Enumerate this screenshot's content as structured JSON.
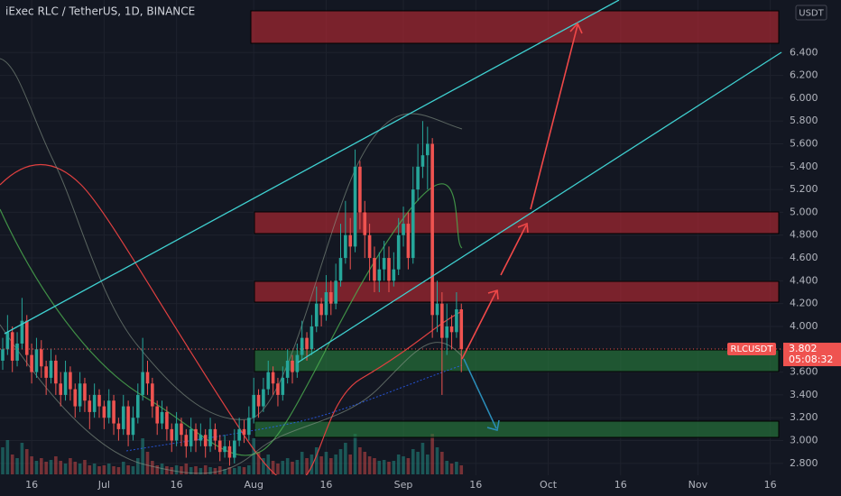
{
  "chart_data": {
    "type": "candlestick",
    "title": "iExec RLC / TetherUS, 1D, BINANCE",
    "currency": "USDT",
    "up_color": "#26a69a",
    "down_color": "#ef5350",
    "grid": true,
    "price_label": {
      "symbol": "RLCUSDT",
      "price": "3.802",
      "countdown": "05:08:32"
    },
    "ylim": [
      2.7,
      6.73
    ],
    "yticks": [
      {
        "value": 2.8,
        "label": "2.800"
      },
      {
        "value": 3.0,
        "label": "3.000"
      },
      {
        "value": 3.2,
        "label": "3.200"
      },
      {
        "value": 3.4,
        "label": "3.400"
      },
      {
        "value": 3.6,
        "label": "3.600"
      },
      {
        "value": 3.8,
        "label": "3.800"
      },
      {
        "value": 4.0,
        "label": "4.000"
      },
      {
        "value": 4.2,
        "label": "4.200"
      },
      {
        "value": 4.4,
        "label": "4.400"
      },
      {
        "value": 4.6,
        "label": "4.600"
      },
      {
        "value": 4.8,
        "label": "4.800"
      },
      {
        "value": 5.0,
        "label": "5.000"
      },
      {
        "value": 5.2,
        "label": "5.200"
      },
      {
        "value": 5.4,
        "label": "5.400"
      },
      {
        "value": 5.6,
        "label": "5.600"
      },
      {
        "value": 5.8,
        "label": "5.800"
      },
      {
        "value": 6.0,
        "label": "6.000"
      },
      {
        "value": 6.2,
        "label": "6.200"
      },
      {
        "value": 6.4,
        "label": "6.400"
      }
    ],
    "xticks": [
      {
        "value": "Jun 16",
        "label": "16"
      },
      {
        "value": "Jul 1",
        "label": "Jul"
      },
      {
        "value": "Jul 16",
        "label": "16"
      },
      {
        "value": "Aug 1",
        "label": "Aug"
      },
      {
        "value": "Aug 16",
        "label": "16"
      },
      {
        "value": "Sep 1",
        "label": "Sep"
      },
      {
        "value": "Sep 16",
        "label": "16"
      },
      {
        "value": "Oct 1",
        "label": "Oct"
      },
      {
        "value": "Oct 16",
        "label": "16"
      },
      {
        "value": "Nov 1",
        "label": "Nov"
      },
      {
        "value": "Nov 16",
        "label": "16"
      }
    ],
    "x": [
      "Jun 10",
      "Jun 11",
      "Jun 12",
      "Jun 13",
      "Jun 14",
      "Jun 15",
      "Jun 16",
      "Jun 17",
      "Jun 18",
      "Jun 19",
      "Jun 20",
      "Jun 21",
      "Jun 22",
      "Jun 23",
      "Jun 24",
      "Jun 25",
      "Jun 26",
      "Jun 27",
      "Jun 28",
      "Jun 29",
      "Jun 30",
      "Jul 1",
      "Jul 2",
      "Jul 3",
      "Jul 4",
      "Jul 5",
      "Jul 6",
      "Jul 7",
      "Jul 8",
      "Jul 9",
      "Jul 10",
      "Jul 11",
      "Jul 12",
      "Jul 13",
      "Jul 14",
      "Jul 15",
      "Jul 16",
      "Jul 17",
      "Jul 18",
      "Jul 19",
      "Jul 20",
      "Jul 21",
      "Jul 22",
      "Jul 23",
      "Jul 24",
      "Jul 25",
      "Jul 26",
      "Jul 27",
      "Jul 28",
      "Jul 29",
      "Jul 30",
      "Jul 31",
      "Aug 1",
      "Aug 2",
      "Aug 3",
      "Aug 4",
      "Aug 5",
      "Aug 6",
      "Aug 7",
      "Aug 8",
      "Aug 9",
      "Aug 10",
      "Aug 11",
      "Aug 12",
      "Aug 13",
      "Aug 14",
      "Aug 15",
      "Aug 16",
      "Aug 17",
      "Aug 18",
      "Aug 19",
      "Aug 20",
      "Aug 21",
      "Aug 22",
      "Aug 23",
      "Aug 24",
      "Aug 25",
      "Aug 26",
      "Aug 27",
      "Aug 28",
      "Aug 29",
      "Aug 30",
      "Aug 31",
      "Sep 1",
      "Sep 2",
      "Sep 3",
      "Sep 4",
      "Sep 5",
      "Sep 6",
      "Sep 7",
      "Sep 8",
      "Sep 9",
      "Sep 10",
      "Sep 11",
      "Sep 12",
      "Sep 13"
    ],
    "open": [
      3.7,
      3.8,
      3.95,
      3.7,
      3.85,
      4.05,
      3.75,
      3.6,
      3.8,
      3.65,
      3.55,
      3.7,
      3.5,
      3.4,
      3.6,
      3.45,
      3.3,
      3.5,
      3.35,
      3.25,
      3.4,
      3.3,
      3.2,
      3.35,
      3.15,
      3.1,
      3.3,
      3.05,
      3.2,
      3.4,
      3.6,
      3.5,
      3.3,
      3.15,
      3.25,
      3.1,
      3.0,
      3.15,
      3.05,
      2.95,
      3.1,
      3.0,
      3.05,
      2.95,
      3.1,
      3.0,
      2.9,
      2.95,
      2.85,
      3.0,
      3.1,
      3.05,
      3.2,
      3.4,
      3.3,
      3.45,
      3.6,
      3.5,
      3.4,
      3.55,
      3.7,
      3.6,
      3.75,
      3.9,
      3.8,
      4.0,
      4.2,
      4.1,
      4.3,
      4.2,
      4.4,
      4.6,
      4.8,
      4.7,
      5.4,
      5.0,
      4.8,
      4.6,
      4.4,
      4.5,
      4.6,
      4.4,
      4.5,
      4.8,
      4.9,
      4.6,
      5.2,
      5.4,
      5.5,
      5.6,
      4.1,
      4.2,
      3.9,
      4.0,
      3.95,
      4.15
    ],
    "high": [
      3.9,
      4.1,
      4.0,
      3.95,
      4.25,
      4.1,
      3.85,
      3.9,
      3.88,
      3.7,
      3.8,
      3.75,
      3.6,
      3.7,
      3.65,
      3.5,
      3.6,
      3.55,
      3.4,
      3.5,
      3.45,
      3.35,
      3.45,
      3.4,
      3.2,
      3.4,
      3.35,
      3.3,
      3.5,
      3.9,
      3.7,
      3.55,
      3.35,
      3.35,
      3.3,
      3.15,
      3.25,
      3.2,
      3.1,
      3.2,
      3.15,
      3.15,
      3.1,
      3.2,
      3.15,
      3.05,
      3.05,
      3.0,
      3.1,
      3.2,
      3.18,
      3.3,
      3.55,
      3.45,
      3.55,
      3.7,
      3.65,
      3.55,
      3.65,
      3.8,
      3.75,
      3.85,
      4.05,
      3.95,
      4.1,
      4.35,
      4.25,
      4.45,
      4.4,
      4.55,
      4.9,
      5.1,
      4.95,
      5.55,
      5.45,
      5.1,
      4.9,
      4.7,
      4.65,
      4.75,
      4.7,
      4.65,
      4.95,
      5.05,
      5.0,
      5.4,
      5.6,
      5.8,
      5.75,
      5.65,
      4.4,
      4.3,
      4.2,
      4.1,
      4.3,
      4.2
    ],
    "low": [
      3.62,
      3.75,
      3.6,
      3.65,
      3.8,
      3.65,
      3.5,
      3.55,
      3.55,
      3.4,
      3.5,
      3.4,
      3.3,
      3.35,
      3.35,
      3.2,
      3.25,
      3.25,
      3.1,
      3.2,
      3.2,
      3.1,
      3.15,
      3.05,
      3.0,
      3.05,
      2.95,
      3.0,
      3.15,
      3.35,
      3.4,
      3.2,
      3.05,
      3.1,
      3.0,
      2.9,
      2.95,
      2.95,
      2.85,
      2.9,
      2.9,
      2.95,
      2.85,
      2.9,
      2.92,
      2.82,
      2.85,
      2.78,
      2.8,
      2.95,
      2.98,
      3.0,
      3.15,
      3.2,
      3.25,
      3.4,
      3.4,
      3.3,
      3.35,
      3.5,
      3.5,
      3.55,
      3.7,
      3.7,
      3.75,
      3.95,
      4.0,
      4.05,
      4.1,
      4.15,
      4.35,
      4.55,
      4.5,
      4.65,
      4.85,
      4.6,
      4.4,
      4.3,
      4.3,
      4.4,
      4.3,
      4.35,
      4.45,
      4.7,
      4.5,
      4.55,
      5.1,
      5.3,
      5.2,
      3.9,
      3.95,
      3.4,
      3.75,
      3.8,
      3.9,
      3.6
    ],
    "close": [
      3.8,
      3.95,
      3.7,
      3.85,
      4.05,
      3.75,
      3.6,
      3.8,
      3.65,
      3.55,
      3.7,
      3.5,
      3.4,
      3.6,
      3.45,
      3.3,
      3.5,
      3.35,
      3.25,
      3.4,
      3.3,
      3.2,
      3.35,
      3.15,
      3.1,
      3.3,
      3.05,
      3.2,
      3.4,
      3.6,
      3.5,
      3.3,
      3.15,
      3.25,
      3.1,
      3.0,
      3.15,
      3.05,
      2.95,
      3.1,
      3.0,
      3.05,
      2.95,
      3.1,
      3.0,
      2.9,
      2.95,
      2.85,
      3.0,
      3.1,
      3.05,
      3.2,
      3.4,
      3.3,
      3.45,
      3.6,
      3.5,
      3.4,
      3.55,
      3.7,
      3.6,
      3.75,
      3.9,
      3.8,
      4.0,
      4.2,
      4.1,
      4.3,
      4.2,
      4.4,
      4.6,
      4.8,
      4.7,
      5.4,
      5.0,
      4.8,
      4.6,
      4.4,
      4.5,
      4.6,
      4.4,
      4.5,
      4.8,
      4.9,
      4.6,
      5.2,
      5.4,
      5.5,
      5.6,
      4.1,
      4.2,
      3.9,
      4.0,
      3.95,
      4.15,
      3.802
    ],
    "volume": [
      30,
      38,
      22,
      18,
      35,
      28,
      20,
      15,
      18,
      14,
      16,
      20,
      15,
      12,
      18,
      14,
      12,
      16,
      10,
      12,
      9,
      10,
      12,
      9,
      8,
      14,
      10,
      9,
      18,
      40,
      25,
      15,
      10,
      12,
      9,
      8,
      10,
      9,
      12,
      8,
      9,
      7,
      10,
      8,
      7,
      9,
      6,
      8,
      7,
      9,
      8,
      10,
      40,
      25,
      18,
      22,
      15,
      12,
      15,
      18,
      14,
      16,
      25,
      18,
      22,
      30,
      20,
      25,
      18,
      22,
      28,
      35,
      22,
      45,
      30,
      25,
      20,
      18,
      15,
      16,
      14,
      15,
      22,
      20,
      18,
      28,
      25,
      35,
      22,
      45,
      30,
      25,
      15,
      12,
      14,
      10
    ]
  }
}
